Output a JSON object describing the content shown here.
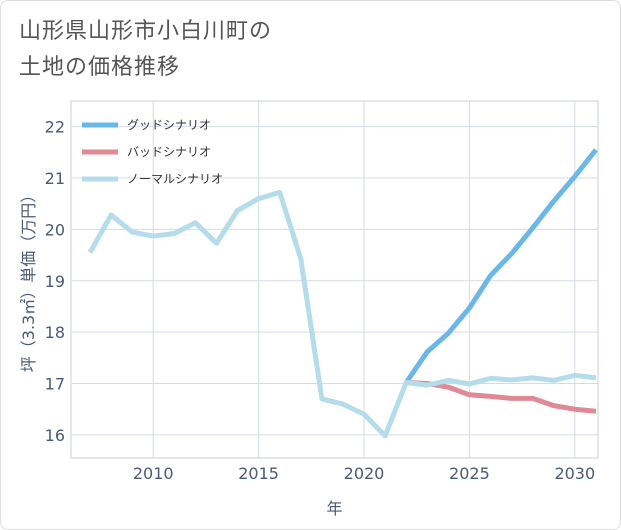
{
  "title": {
    "line1": "山形県山形市小白川町の",
    "line2": "土地の価格推移"
  },
  "chart_data": {
    "type": "line",
    "xlabel": "年",
    "ylabel": "坪（3.3㎡）単価（万円）",
    "xlim": [
      2006.1,
      2031.1
    ],
    "ylim": [
      15.55,
      22.5
    ],
    "xticks": [
      2010,
      2015,
      2020,
      2025,
      2030
    ],
    "yticks": [
      16,
      17,
      18,
      19,
      20,
      21,
      22
    ],
    "grid": true,
    "legend_position": "top-left",
    "series": [
      {
        "name": "グッドシナリオ",
        "color": "#6bb8e8",
        "x": [
          2022,
          2023,
          2024,
          2025,
          2026,
          2027,
          2028,
          2029,
          2030,
          2031
        ],
        "y": [
          17.02,
          17.62,
          17.98,
          18.47,
          19.1,
          19.53,
          20.03,
          20.55,
          21.03,
          21.55
        ]
      },
      {
        "name": "バッドシナリオ",
        "color": "#e08a95",
        "x": [
          2022,
          2023,
          2024,
          2025,
          2026,
          2027,
          2028,
          2029,
          2030,
          2031
        ],
        "y": [
          17.02,
          17.0,
          16.93,
          16.78,
          16.75,
          16.71,
          16.71,
          16.57,
          16.5,
          16.46
        ]
      },
      {
        "name": "ノーマルシナリオ",
        "color": "#b5dcea",
        "x": [
          2007,
          2008,
          2009,
          2010,
          2011,
          2012,
          2013,
          2014,
          2015,
          2016,
          2017,
          2018,
          2019,
          2020,
          2021,
          2022,
          2023,
          2024,
          2025,
          2026,
          2027,
          2028,
          2029,
          2030,
          2031
        ],
        "y": [
          19.55,
          20.28,
          19.95,
          19.87,
          19.92,
          20.13,
          19.73,
          20.37,
          20.6,
          20.72,
          19.43,
          16.7,
          16.6,
          16.4,
          15.98,
          17.02,
          16.97,
          17.06,
          16.99,
          17.1,
          17.07,
          17.11,
          17.06,
          17.16,
          17.11
        ]
      }
    ]
  }
}
